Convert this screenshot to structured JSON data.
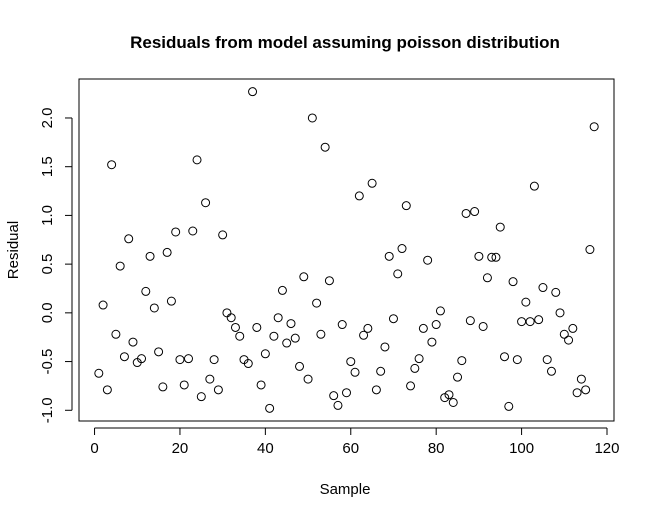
{
  "chart_data": {
    "type": "scatter",
    "title": "Residuals from model assuming poisson distribution",
    "xlabel": "Sample",
    "ylabel": "Residual",
    "xlim": [
      1,
      117
    ],
    "ylim": [
      -0.98,
      2.27
    ],
    "x_ticks": [
      0,
      20,
      40,
      60,
      80,
      100,
      120
    ],
    "y_ticks": [
      -1.0,
      -0.5,
      0.0,
      0.5,
      1.0,
      1.5,
      2.0
    ],
    "x_tick_labels": [
      "0",
      "20",
      "40",
      "60",
      "80",
      "100",
      "120"
    ],
    "y_tick_labels": [
      "-1.0",
      "-0.5",
      "0.0",
      "0.5",
      "1.0",
      "1.5",
      "2.0"
    ],
    "grid": false,
    "legend": "none",
    "point_symbol": "open-circle",
    "point_color": "#000000",
    "x": [
      1,
      2,
      3,
      4,
      5,
      6,
      7,
      8,
      9,
      10,
      11,
      12,
      13,
      14,
      15,
      16,
      17,
      18,
      19,
      20,
      21,
      22,
      23,
      24,
      25,
      26,
      27,
      28,
      29,
      30,
      31,
      32,
      33,
      34,
      35,
      36,
      37,
      38,
      39,
      40,
      41,
      42,
      43,
      44,
      45,
      46,
      47,
      48,
      49,
      50,
      51,
      52,
      53,
      54,
      55,
      56,
      57,
      58,
      59,
      60,
      61,
      62,
      63,
      64,
      65,
      66,
      67,
      68,
      69,
      70,
      71,
      72,
      73,
      74,
      75,
      76,
      77,
      78,
      79,
      80,
      81,
      82,
      83,
      84,
      85,
      86,
      87,
      88,
      89,
      90,
      91,
      92,
      93,
      94,
      95,
      96,
      97,
      98,
      99,
      100,
      101,
      102,
      103,
      104,
      105,
      106,
      107,
      108,
      109,
      110,
      111,
      112,
      113,
      114,
      115,
      116,
      117
    ],
    "y": [
      -0.62,
      0.08,
      -0.79,
      1.52,
      -0.22,
      0.48,
      -0.45,
      0.76,
      -0.3,
      -0.51,
      -0.47,
      0.22,
      0.58,
      0.05,
      -0.4,
      -0.76,
      0.62,
      0.12,
      0.83,
      -0.48,
      -0.74,
      -0.47,
      0.84,
      1.57,
      -0.86,
      1.13,
      -0.68,
      -0.48,
      -0.79,
      0.8,
      0.0,
      -0.05,
      -0.15,
      -0.24,
      -0.48,
      -0.52,
      2.27,
      -0.15,
      -0.74,
      -0.42,
      -0.98,
      -0.24,
      -0.05,
      0.23,
      -0.31,
      -0.11,
      -0.26,
      -0.55,
      0.37,
      -0.68,
      2.0,
      0.1,
      -0.22,
      1.7,
      0.33,
      -0.85,
      -0.95,
      -0.12,
      -0.82,
      -0.5,
      -0.61,
      1.2,
      -0.23,
      -0.16,
      1.33,
      -0.79,
      -0.6,
      -0.35,
      0.58,
      -0.06,
      0.4,
      0.66,
      1.1,
      -0.75,
      -0.57,
      -0.47,
      -0.16,
      0.54,
      -0.3,
      -0.12,
      0.02,
      -0.87,
      -0.84,
      -0.92,
      -0.66,
      -0.49,
      1.02,
      -0.08,
      1.04,
      0.58,
      -0.14,
      0.36,
      0.57,
      0.57,
      0.88,
      -0.45,
      -0.96,
      0.32,
      -0.48,
      -0.09,
      0.11,
      -0.09,
      1.3,
      -0.07,
      0.26,
      -0.48,
      -0.6,
      0.21,
      0.0,
      -0.22,
      -0.28,
      -0.16,
      -0.82,
      -0.68,
      -0.79,
      0.65,
      1.91
    ]
  }
}
